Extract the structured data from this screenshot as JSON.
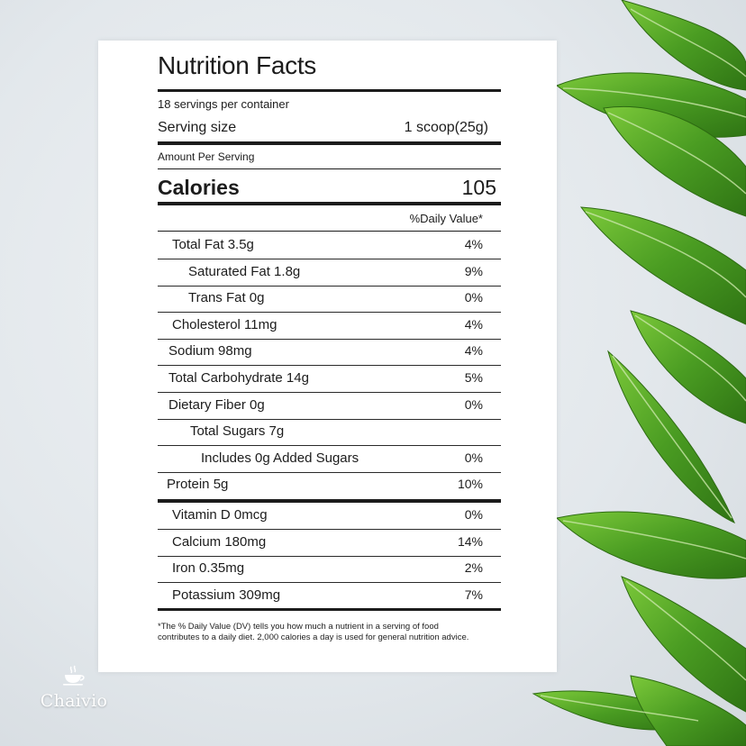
{
  "label": {
    "title": "Nutrition Facts",
    "servings_per_container": "18 servings per container",
    "serving_size_label": "Serving size",
    "serving_size_value": "1 scoop(25g)",
    "amount_per_serving": "Amount Per Serving",
    "calories_label": "Calories",
    "calories_value": "105",
    "daily_value_header": "%Daily Value*",
    "nutrients": [
      {
        "name": "Total Fat 3.5g",
        "dv": "4%"
      },
      {
        "name": "Saturated Fat 1.8g",
        "dv": "9%"
      },
      {
        "name": "Trans Fat 0g",
        "dv": "0%"
      },
      {
        "name": "Cholesterol 11mg",
        "dv": "4%"
      },
      {
        "name": "Sodium 98mg",
        "dv": "4%"
      },
      {
        "name": "Total Carbohydrate 14g",
        "dv": "5%"
      },
      {
        "name": "Dietary Fiber 0g",
        "dv": "0%"
      },
      {
        "name": "Total Sugars 7g",
        "dv": ""
      },
      {
        "name": "Includes 0g Added Sugars",
        "dv": "0%"
      },
      {
        "name": "Protein 5g",
        "dv": "10%"
      }
    ],
    "vitamins": [
      {
        "name": "Vitamin D 0mcg",
        "dv": "0%"
      },
      {
        "name": "Calcium 180mg",
        "dv": "14%"
      },
      {
        "name": "Iron 0.35mg",
        "dv": "2%"
      },
      {
        "name": "Potassium 309mg",
        "dv": "7%"
      }
    ],
    "footnote": "*The % Daily Value (DV) tells you how much a nutrient in a serving of food contributes to a daily diet. 2,000 calories a day is used for general nutrition advice."
  },
  "brand": {
    "name": "Chaivio",
    "icon": "teacup-icon"
  },
  "colors": {
    "leaf": "#3f8f1f",
    "leaf_light": "#6cbd32",
    "background": "#e3e8ec"
  }
}
